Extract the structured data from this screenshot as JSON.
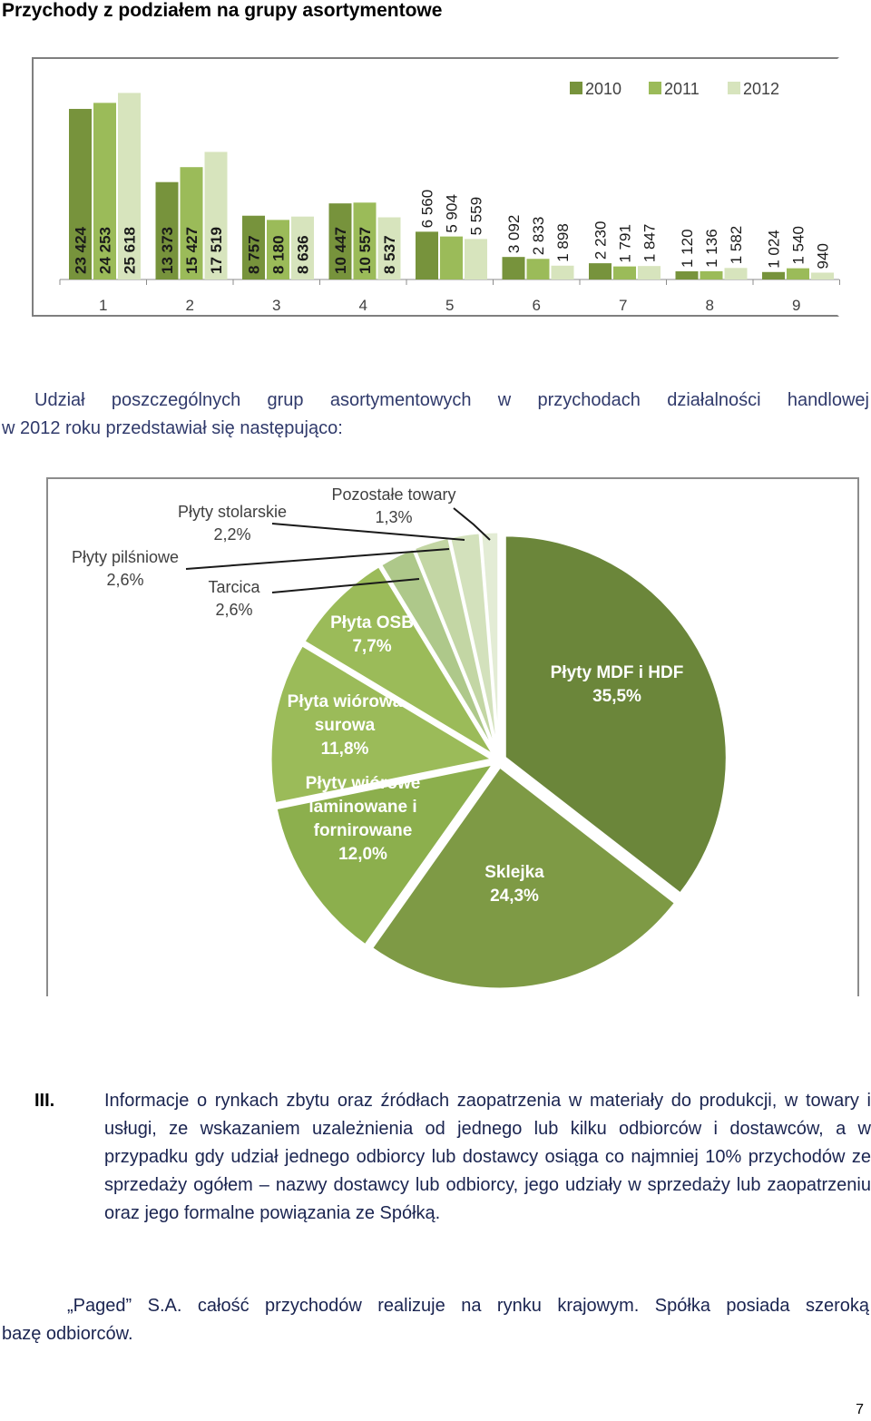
{
  "heading": "Przychody z podziałem na grupy asortymentowe",
  "chart_data": [
    {
      "type": "bar",
      "categories": [
        "1",
        "2",
        "3",
        "4",
        "5",
        "6",
        "7",
        "8",
        "9"
      ],
      "series": [
        {
          "name": "2010",
          "color": "#77933c",
          "values": [
            23424,
            13373,
            8757,
            10447,
            6560,
            3092,
            2230,
            1120,
            1024
          ],
          "labels": [
            "23 424",
            "13 373",
            "8 757",
            "10 447",
            "6 560",
            "3 092",
            "2 230",
            "1 120",
            "1 024"
          ]
        },
        {
          "name": "2011",
          "color": "#9bbb59",
          "values": [
            24253,
            15427,
            8180,
            10557,
            5904,
            2833,
            1791,
            1136,
            1540
          ],
          "labels": [
            "24 253",
            "15 427",
            "8 180",
            "10 557",
            "5 904",
            "2 833",
            "1 791",
            "1 136",
            "1 540"
          ]
        },
        {
          "name": "2012",
          "color": "#d7e4bd",
          "values": [
            25618,
            17519,
            8636,
            8537,
            5559,
            1898,
            1847,
            1582,
            940
          ],
          "labels": [
            "25 618",
            "17 519",
            "8 636",
            "8 537",
            "5 559",
            "1 898",
            "1 847",
            "1 582",
            "940"
          ]
        }
      ],
      "ylim": [
        0,
        28000
      ],
      "legend": "top-right"
    },
    {
      "type": "pie",
      "slices": [
        {
          "label": "Płyty MDF i HDF",
          "value": 35.5,
          "pct": "35,5%",
          "color": "#6b863a"
        },
        {
          "label": "Sklejka",
          "value": 24.3,
          "pct": "24,3%",
          "color": "#7e9a45"
        },
        {
          "label": "Płyty wiórowe laminowane i fornirowane",
          "lines": [
            "Płyty wiórowe",
            "laminowane i",
            "fornirowane"
          ],
          "value": 12.0,
          "pct": "12,0%",
          "color": "#8caf4d"
        },
        {
          "label": "Płyta wiórowa surowa",
          "lines": [
            "Płyta wiórowa",
            "surowa"
          ],
          "value": 11.8,
          "pct": "11,8%",
          "color": "#9bbb59"
        },
        {
          "label": "Płyta OSB",
          "value": 7.7,
          "pct": "7,7%",
          "color": "#9bbb59"
        },
        {
          "label": "Tarcica",
          "value": 2.6,
          "pct": "2,6%",
          "color": "#aec88a"
        },
        {
          "label": "Płyty pilśniowe",
          "value": 2.6,
          "pct": "2,6%",
          "color": "#c3d6a4"
        },
        {
          "label": "Płyty stolarskie",
          "value": 2.2,
          "pct": "2,2%",
          "color": "#d3e1bc"
        },
        {
          "label": "Pozostałe towary",
          "value": 1.3,
          "pct": "1,3%",
          "color": "#e3ecd5"
        }
      ]
    }
  ],
  "intro_line1": "Udział poszczególnych grup asortymentowych w przychodach działalności handlowej",
  "intro_line2": "w 2012 roku przedstawiał się następująco:",
  "section_number": "III.",
  "section_text": "Informacje o rynkach zbytu oraz źródłach zaopatrzenia w materiały do produkcji, w towary i usługi, ze wskazaniem uzależnienia od jednego lub kilku odbiorców i dostawców, a w przypadku gdy udział jednego odbiorcy lub dostawcy osiąga co najmniej 10% przychodów ze sprzedaży ogółem – nazwy dostawcy lub odbiorcy, jego udziały w sprzedaży lub zaopatrzeniu oraz jego formalne powiązania ze Spółką.",
  "closing_line1": "„Paged” S.A. całość przychodów realizuje na rynku krajowym. Spółka posiada szeroką",
  "closing_line2": "bazę odbiorców.",
  "page_number": "7"
}
